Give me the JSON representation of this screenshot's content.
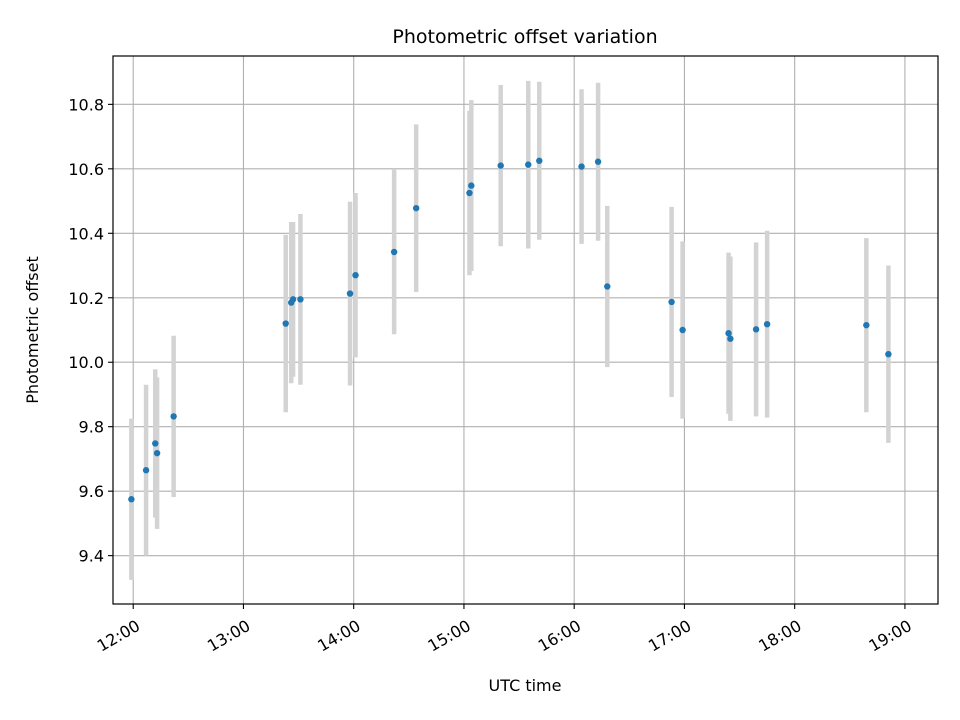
{
  "chart_data": {
    "type": "scatter",
    "title": "Photometric offset variation",
    "xlabel": "UTC time",
    "ylabel": "Photometric offset",
    "x_ticks": [
      "12:00",
      "13:00",
      "14:00",
      "15:00",
      "16:00",
      "17:00",
      "18:00",
      "19:00"
    ],
    "y_ticks": [
      "9.4",
      "9.6",
      "9.8",
      "10.0",
      "10.2",
      "10.4",
      "10.6",
      "10.8"
    ],
    "xlim": [
      "11:49",
      "19:18"
    ],
    "ylim": [
      9.25,
      10.95
    ],
    "grid": true,
    "point_color": "#1f77b4",
    "errorbar_color": "#d3d3d3",
    "points": [
      {
        "x": "11:59",
        "y": 9.575,
        "err": 0.25
      },
      {
        "x": "12:07",
        "y": 9.665,
        "err": 0.265
      },
      {
        "x": "12:12",
        "y": 9.748,
        "err": 0.23
      },
      {
        "x": "12:13",
        "y": 9.718,
        "err": 0.235
      },
      {
        "x": "12:22",
        "y": 9.832,
        "err": 0.25
      },
      {
        "x": "13:23",
        "y": 10.12,
        "err": 0.275
      },
      {
        "x": "13:26",
        "y": 10.185,
        "err": 0.25
      },
      {
        "x": "13:27",
        "y": 10.195,
        "err": 0.24
      },
      {
        "x": "13:31",
        "y": 10.195,
        "err": 0.265
      },
      {
        "x": "13:58",
        "y": 10.213,
        "err": 0.285
      },
      {
        "x": "14:01",
        "y": 10.27,
        "err": 0.255
      },
      {
        "x": "14:22",
        "y": 10.342,
        "err": 0.255
      },
      {
        "x": "14:34",
        "y": 10.478,
        "err": 0.26
      },
      {
        "x": "15:03",
        "y": 10.525,
        "err": 0.255
      },
      {
        "x": "15:04",
        "y": 10.548,
        "err": 0.265
      },
      {
        "x": "15:20",
        "y": 10.61,
        "err": 0.25
      },
      {
        "x": "15:35",
        "y": 10.613,
        "err": 0.26
      },
      {
        "x": "15:41",
        "y": 10.625,
        "err": 0.245
      },
      {
        "x": "16:04",
        "y": 10.607,
        "err": 0.24
      },
      {
        "x": "16:13",
        "y": 10.622,
        "err": 0.245
      },
      {
        "x": "16:18",
        "y": 10.235,
        "err": 0.25
      },
      {
        "x": "16:53",
        "y": 10.187,
        "err": 0.295
      },
      {
        "x": "16:59",
        "y": 10.1,
        "err": 0.275
      },
      {
        "x": "17:24",
        "y": 10.09,
        "err": 0.25
      },
      {
        "x": "17:25",
        "y": 10.073,
        "err": 0.255
      },
      {
        "x": "17:39",
        "y": 10.102,
        "err": 0.27
      },
      {
        "x": "17:45",
        "y": 10.118,
        "err": 0.29
      },
      {
        "x": "18:39",
        "y": 10.115,
        "err": 0.27
      },
      {
        "x": "18:51",
        "y": 10.025,
        "err": 0.275
      }
    ]
  }
}
